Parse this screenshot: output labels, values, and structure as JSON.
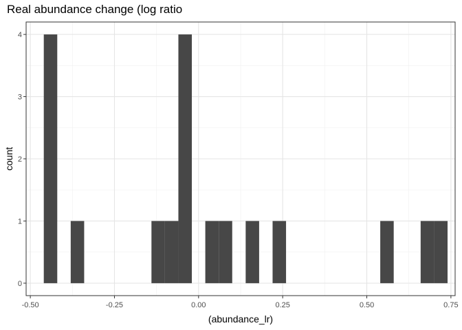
{
  "chart_data": {
    "type": "histogram",
    "title": "Real abundance change (log ratio",
    "xlabel": "(abundance_lr)",
    "ylabel": "count",
    "xlim": [
      -0.5125,
      0.7625
    ],
    "ylim": [
      -0.2,
      4.2
    ],
    "x_ticks": [
      -0.5,
      -0.25,
      0.0,
      0.25,
      0.5,
      0.75
    ],
    "x_tick_labels": [
      "-0.50",
      "-0.25",
      "0.00",
      "0.25",
      "0.50",
      "0.75"
    ],
    "y_ticks": [
      0,
      1,
      2,
      3,
      4
    ],
    "y_tick_labels": [
      "0",
      "1",
      "2",
      "3",
      "4"
    ],
    "bar_color": "#474747",
    "grid": true,
    "bins": [
      {
        "x0": -0.46,
        "x1": -0.42,
        "count": 4
      },
      {
        "x0": -0.38,
        "x1": -0.34,
        "count": 1
      },
      {
        "x0": -0.14,
        "x1": -0.1,
        "count": 1
      },
      {
        "x0": -0.1,
        "x1": -0.06,
        "count": 1
      },
      {
        "x0": -0.06,
        "x1": -0.02,
        "count": 4
      },
      {
        "x0": 0.02,
        "x1": 0.06,
        "count": 1
      },
      {
        "x0": 0.06,
        "x1": 0.1,
        "count": 1
      },
      {
        "x0": 0.14,
        "x1": 0.18,
        "count": 1
      },
      {
        "x0": 0.22,
        "x1": 0.26,
        "count": 1
      },
      {
        "x0": 0.54,
        "x1": 0.58,
        "count": 1
      },
      {
        "x0": 0.66,
        "x1": 0.7,
        "count": 1
      },
      {
        "x0": 0.7,
        "x1": 0.74,
        "count": 1
      }
    ]
  }
}
